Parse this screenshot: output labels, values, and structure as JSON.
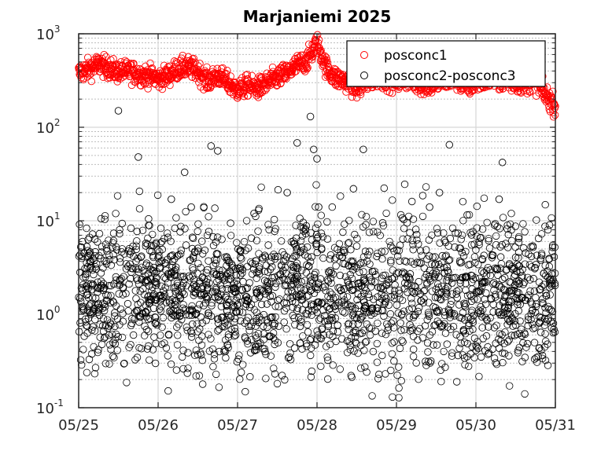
{
  "chart_data": {
    "type": "scatter",
    "title": "Marjaniemi 2025",
    "xlabel": "",
    "ylabel": "",
    "x_axis": {
      "type": "date",
      "range": [
        "2025-05-25",
        "2025-05-31"
      ],
      "tick_labels": [
        "05/25",
        "05/26",
        "05/27",
        "05/28",
        "05/29",
        "05/30",
        "05/31"
      ]
    },
    "y_axis": {
      "scale": "log",
      "range": [
        0.1,
        1000
      ],
      "ticks": [
        {
          "base": "10",
          "exp": "-1"
        },
        {
          "base": "10",
          "exp": "0"
        },
        {
          "base": "10",
          "exp": "1"
        },
        {
          "base": "10",
          "exp": "2"
        },
        {
          "base": "10",
          "exp": "3"
        }
      ]
    },
    "grid": true,
    "minor_grid": true,
    "legend_position": "top-right",
    "colors": {
      "posconc1": "#ff0000",
      "diff": "#000000"
    },
    "series": [
      {
        "name": "posconc1",
        "marker": "open-circle",
        "color": "#ff0000",
        "points": [
          [
            "2025-05-25 00:00",
            380
          ],
          [
            "2025-05-25 03:00",
            420
          ],
          [
            "2025-05-25 06:00",
            470
          ],
          [
            "2025-05-25 09:00",
            430
          ],
          [
            "2025-05-25 12:00",
            390
          ],
          [
            "2025-05-25 15:00",
            400
          ],
          [
            "2025-05-25 18:00",
            370
          ],
          [
            "2025-05-25 21:00",
            360
          ],
          [
            "2025-05-26 00:00",
            330
          ],
          [
            "2025-05-26 03:00",
            360
          ],
          [
            "2025-05-26 06:00",
            420
          ],
          [
            "2025-05-26 09:00",
            440
          ],
          [
            "2025-05-26 12:00",
            400
          ],
          [
            "2025-05-26 15:00",
            310
          ],
          [
            "2025-05-26 18:00",
            360
          ],
          [
            "2025-05-26 21:00",
            300
          ],
          [
            "2025-05-27 00:00",
            250
          ],
          [
            "2025-05-27 03:00",
            280
          ],
          [
            "2025-05-27 06:00",
            260
          ],
          [
            "2025-05-27 09:00",
            300
          ],
          [
            "2025-05-27 12:00",
            340
          ],
          [
            "2025-05-27 15:00",
            380
          ],
          [
            "2025-05-27 18:00",
            460
          ],
          [
            "2025-05-27 21:00",
            520
          ],
          [
            "2025-05-28 00:00",
            800
          ],
          [
            "2025-05-28 03:00",
            420
          ],
          [
            "2025-05-28 06:00",
            330
          ],
          [
            "2025-05-28 09:00",
            310
          ],
          [
            "2025-05-28 12:00",
            260
          ],
          [
            "2025-05-28 15:00",
            300
          ],
          [
            "2025-05-28 18:00",
            340
          ],
          [
            "2025-05-28 21:00",
            330
          ],
          [
            "2025-05-29 00:00",
            310
          ],
          [
            "2025-05-29 03:00",
            330
          ],
          [
            "2025-05-29 06:00",
            300
          ],
          [
            "2025-05-29 09:00",
            280
          ],
          [
            "2025-05-29 12:00",
            300
          ],
          [
            "2025-05-29 15:00",
            320
          ],
          [
            "2025-05-29 18:00",
            330
          ],
          [
            "2025-05-29 21:00",
            270
          ],
          [
            "2025-05-30 00:00",
            300
          ],
          [
            "2025-05-30 03:00",
            320
          ],
          [
            "2025-05-30 06:00",
            330
          ],
          [
            "2025-05-30 09:00",
            310
          ],
          [
            "2025-05-30 12:00",
            300
          ],
          [
            "2025-05-30 15:00",
            300
          ],
          [
            "2025-05-30 18:00",
            310
          ],
          [
            "2025-05-30 21:00",
            220
          ],
          [
            "2025-05-31 00:00",
            170
          ]
        ]
      },
      {
        "name": "posconc2-posconc3",
        "marker": "open-circle",
        "color": "#000000",
        "typical_range": [
          0.5,
          6
        ],
        "points": [
          [
            "2025-05-25 12:00",
            150
          ],
          [
            "2025-05-25 18:00",
            48
          ],
          [
            "2025-05-26 04:00",
            17
          ],
          [
            "2025-05-26 08:00",
            33
          ],
          [
            "2025-05-26 10:00",
            14
          ],
          [
            "2025-05-26 16:00",
            63
          ],
          [
            "2025-05-26 18:00",
            56
          ],
          [
            "2025-05-27 15:00",
            20
          ],
          [
            "2025-05-27 18:00",
            68
          ],
          [
            "2025-05-27 22:00",
            130
          ],
          [
            "2025-05-27 23:00",
            58
          ],
          [
            "2025-05-28 00:00",
            46
          ],
          [
            "2025-05-28 00:30",
            14
          ],
          [
            "2025-05-28 11:00",
            22
          ],
          [
            "2025-05-28 14:00",
            58
          ],
          [
            "2025-05-29 13:00",
            20
          ],
          [
            "2025-05-29 16:00",
            65
          ],
          [
            "2025-05-30 07:00",
            17
          ],
          [
            "2025-05-30 08:00",
            42
          ],
          [
            "2025-05-29 10:00",
            14
          ],
          [
            "2025-05-27 05:00",
            12
          ]
        ]
      }
    ]
  }
}
